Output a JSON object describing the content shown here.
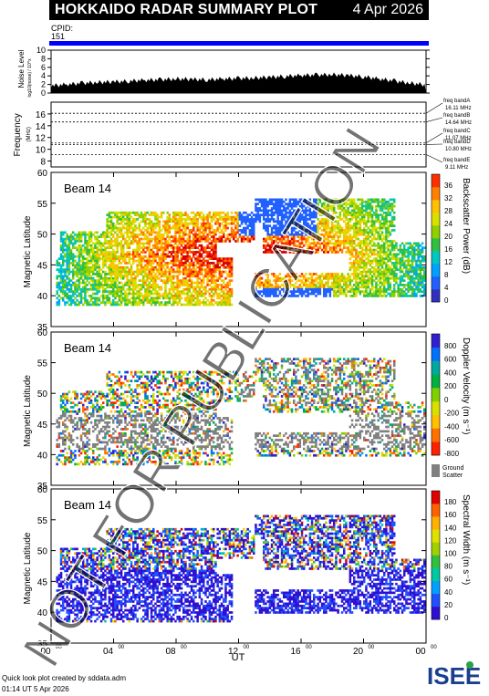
{
  "header": {
    "title": "HOKKAIDO RADAR SUMMARY PLOT",
    "date": "4 Apr 2026",
    "cpid_label": "CPID:",
    "cpid_value": "151"
  },
  "watermark": "NOT FOR PUBLICATION",
  "footer": {
    "created_by": "Quick look plot created by sddata.adm",
    "timestamp": "01:14 UT 5 Apr 2026"
  },
  "logo_text": "ISEE",
  "colors": {
    "title_bg": "#000000",
    "cpid_bar": "#0000ff",
    "ground_scatter": "#808080"
  },
  "chart_data": [
    {
      "type": "area",
      "id": "noise",
      "ylabel": "Noise Level",
      "ylabel_sub": "log10(noise) / 10^x",
      "ylim": [
        0,
        10
      ],
      "yticks": [
        0,
        2,
        4,
        6,
        8,
        10
      ],
      "xlim": [
        0,
        24
      ],
      "x": [
        0,
        1,
        2,
        3,
        4,
        5,
        6,
        7,
        8,
        9,
        10,
        11,
        12,
        13,
        14,
        15,
        16,
        17,
        18,
        19,
        20,
        21,
        22,
        23,
        24
      ],
      "values": [
        1.2,
        1.5,
        1.8,
        2.0,
        2.1,
        2.3,
        2.5,
        2.6,
        2.8,
        2.7,
        2.6,
        2.8,
        2.9,
        3.0,
        3.2,
        3.4,
        3.6,
        3.7,
        3.8,
        3.6,
        3.3,
        2.8,
        2.3,
        1.8,
        1.4
      ]
    },
    {
      "type": "line",
      "id": "frequency",
      "ylabel": "Frequency",
      "ylabel_unit": "(MHz)",
      "ylim": [
        7,
        18
      ],
      "yticks": [
        8,
        10,
        12,
        14,
        16
      ],
      "bands": [
        {
          "label": "freq bandA",
          "value": "16.11 MHz",
          "mhz": 16.11
        },
        {
          "label": "freq bandB",
          "value": "14.64 MHz",
          "mhz": 14.64
        },
        {
          "label": "freq bandC",
          "value": "11.07 MHz",
          "mhz": 11.07
        },
        {
          "label": "freq bandD",
          "value": "10.80 MHz",
          "mhz": 10.8
        },
        {
          "label": "freq bandE",
          "value": "9.11 MHz",
          "mhz": 9.11
        }
      ]
    },
    {
      "type": "heatmap",
      "id": "power",
      "beam": "Beam 14",
      "ylabel": "Magnetic Latitude",
      "ylim": [
        35,
        60
      ],
      "yticks": [
        35,
        40,
        45,
        50,
        55,
        60
      ],
      "colorbar_label": "Backscatter Power (dB)",
      "colorbar_ticks": [
        "0",
        "4",
        "8",
        "12",
        "16",
        "20",
        "24",
        "28",
        "32",
        "36"
      ]
    },
    {
      "type": "heatmap",
      "id": "velocity",
      "beam": "Beam 14",
      "ylabel": "Magnetic Latitude",
      "ylim": [
        35,
        60
      ],
      "yticks": [
        35,
        40,
        45,
        50,
        55,
        60
      ],
      "colorbar_label": "Doppler Velocity (m s⁻¹)",
      "colorbar_ticks": [
        "-800",
        "-600",
        "-400",
        "-200",
        "0",
        "200",
        "400",
        "600",
        "800"
      ],
      "ground_scatter_label_1": "Ground",
      "ground_scatter_label_2": "Scatter"
    },
    {
      "type": "heatmap",
      "id": "width",
      "beam": "Beam 14",
      "ylabel": "Magnetic Latitude",
      "ylim": [
        35,
        60
      ],
      "yticks": [
        35,
        40,
        45,
        50,
        55,
        60
      ],
      "colorbar_label": "Spectral Width (m s⁻¹)",
      "colorbar_ticks": [
        "0",
        "20",
        "40",
        "60",
        "80",
        "100",
        "120",
        "140",
        "160",
        "180"
      ],
      "xlabel": "UT",
      "xticks": [
        {
          "h": 0,
          "label": "00",
          "sup": "00"
        },
        {
          "h": 4,
          "label": "04",
          "sup": "00"
        },
        {
          "h": 8,
          "label": "08",
          "sup": "00"
        },
        {
          "h": 12,
          "label": "12",
          "sup": "00"
        },
        {
          "h": 16,
          "label": "16",
          "sup": "00"
        },
        {
          "h": 20,
          "label": "20",
          "sup": "00"
        },
        {
          "h": 24,
          "label": "00",
          "sup": "00"
        }
      ]
    }
  ]
}
